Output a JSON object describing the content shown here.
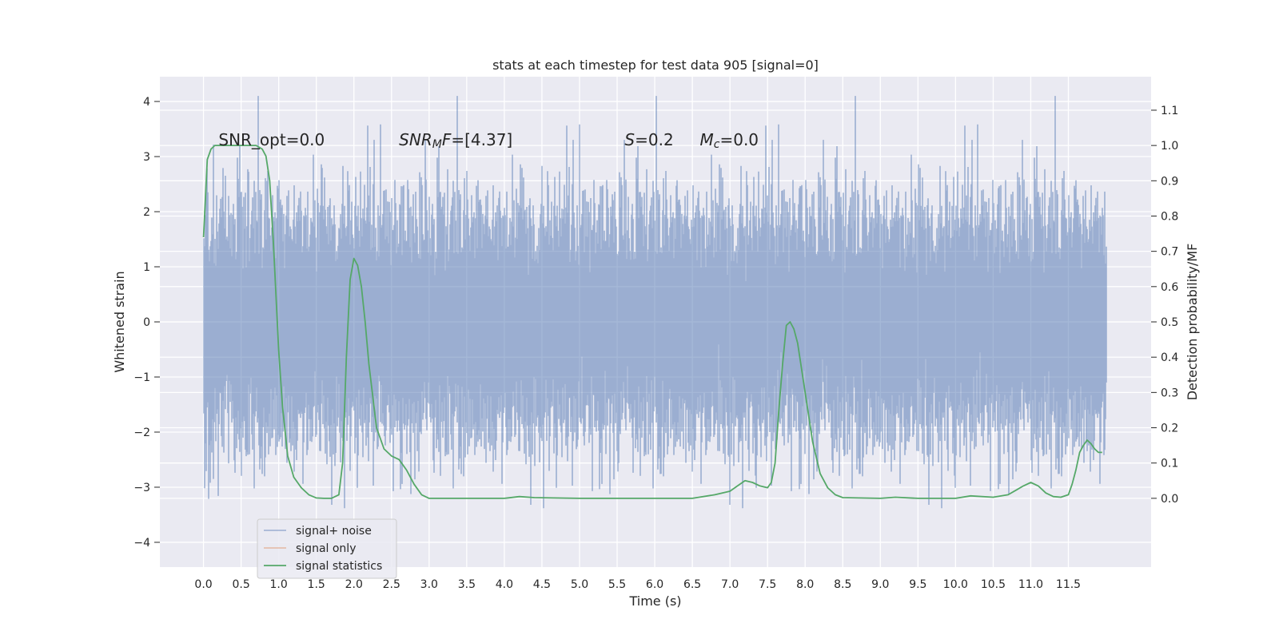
{
  "chart_data": {
    "type": "line",
    "title": "stats at each timestep for test data 905 [signal=0]",
    "xlabel": "Time (s)",
    "ylabel": "Whitened strain",
    "y2label": "Detection probability/MF",
    "xlim": [
      -0.58,
      12.6
    ],
    "ylim": [
      -4.45,
      4.45
    ],
    "y2lim": [
      -0.195,
      1.195
    ],
    "x_ticks": [
      0.0,
      0.5,
      1.0,
      1.5,
      2.0,
      2.5,
      3.0,
      3.5,
      4.0,
      4.5,
      5.0,
      5.5,
      6.0,
      6.5,
      7.0,
      7.5,
      8.0,
      8.5,
      9.0,
      9.5,
      10.0,
      10.5,
      11.0,
      11.5
    ],
    "x_tick_labels": [
      "0.0",
      "0.5",
      "1.0",
      "1.5",
      "2.0",
      "2.5",
      "3.0",
      "3.5",
      "4.0",
      "4.5",
      "5.0",
      "5.5",
      "6.0",
      "6.5",
      "7.0",
      "7.5",
      "8.0",
      "8.5",
      "9.0",
      "9.5",
      "10.0",
      "10.5",
      "11.0",
      "11.5"
    ],
    "y_ticks": [
      -4,
      -3,
      -2,
      -1,
      0,
      1,
      2,
      3,
      4
    ],
    "y_tick_labels": [
      "−4",
      "−3",
      "−2",
      "−1",
      "0",
      "1",
      "2",
      "3",
      "4"
    ],
    "y2_ticks": [
      0.0,
      0.1,
      0.2,
      0.3,
      0.4,
      0.5,
      0.6,
      0.7,
      0.8,
      0.9,
      1.0,
      1.1
    ],
    "y2_tick_labels": [
      "0.0",
      "0.1",
      "0.2",
      "0.3",
      "0.4",
      "0.5",
      "0.6",
      "0.7",
      "0.8",
      "0.9",
      "1.0",
      "1.1"
    ],
    "grid": true,
    "legend_position": "lower-left",
    "annotations": [
      {
        "x": 0.2,
        "y": 3.2,
        "parts": [
          {
            "t": "SNR_opt=0.0",
            "s": "n"
          }
        ]
      },
      {
        "x": 2.6,
        "y": 3.2,
        "parts": [
          {
            "t": "SNR",
            "s": "i"
          },
          {
            "t": "M",
            "s": "sub"
          },
          {
            "t": "F",
            "s": "i"
          },
          {
            "t": "=[4.37]",
            "s": "n"
          }
        ]
      },
      {
        "x": 5.6,
        "y": 3.2,
        "parts": [
          {
            "t": "S",
            "s": "i"
          },
          {
            "t": "=0.2",
            "s": "n"
          }
        ]
      },
      {
        "x": 6.6,
        "y": 3.2,
        "parts": [
          {
            "t": "M",
            "s": "i"
          },
          {
            "t": "c",
            "s": "sub"
          },
          {
            "t": "=0.0",
            "s": "n"
          }
        ]
      }
    ],
    "series": [
      {
        "name": "signal+ noise",
        "color": "#4c72b0",
        "alpha": 0.5,
        "axis": "left",
        "x_range": [
          0.0,
          12.0
        ],
        "sample_rate_hz": 2048,
        "value_range": [
          -4.05,
          4.1
        ],
        "typical_range": [
          -2.5,
          2.6
        ]
      },
      {
        "name": "signal only",
        "color": "#dd8452",
        "alpha": 0.5,
        "axis": "left",
        "x": [],
        "y": []
      },
      {
        "name": "signal statistics",
        "color": "#55a868",
        "axis": "right",
        "x": [
          0.0,
          0.05,
          0.1,
          0.15,
          0.2,
          0.3,
          0.4,
          0.5,
          0.6,
          0.7,
          0.78,
          0.83,
          0.88,
          0.93,
          1.0,
          1.05,
          1.12,
          1.2,
          1.3,
          1.4,
          1.5,
          1.6,
          1.7,
          1.8,
          1.85,
          1.9,
          1.95,
          2.0,
          2.05,
          2.1,
          2.15,
          2.2,
          2.3,
          2.4,
          2.5,
          2.6,
          2.7,
          2.8,
          2.9,
          3.0,
          3.2,
          3.5,
          4.0,
          4.2,
          4.4,
          5.0,
          6.0,
          6.5,
          6.8,
          7.0,
          7.1,
          7.2,
          7.3,
          7.4,
          7.5,
          7.55,
          7.6,
          7.65,
          7.7,
          7.75,
          7.8,
          7.85,
          7.9,
          8.0,
          8.1,
          8.2,
          8.3,
          8.4,
          8.5,
          9.0,
          9.2,
          9.5,
          10.0,
          10.2,
          10.5,
          10.7,
          10.9,
          11.0,
          11.1,
          11.2,
          11.3,
          11.4,
          11.5,
          11.55,
          11.6,
          11.65,
          11.7,
          11.75,
          11.8,
          11.85,
          11.9,
          11.95
        ],
        "y": [
          0.74,
          0.96,
          0.99,
          1.0,
          1.0,
          1.0,
          1.0,
          1.0,
          1.0,
          1.0,
          0.99,
          0.97,
          0.9,
          0.72,
          0.42,
          0.26,
          0.12,
          0.06,
          0.03,
          0.01,
          0.001,
          0.0,
          0.0,
          0.01,
          0.1,
          0.4,
          0.62,
          0.68,
          0.66,
          0.6,
          0.5,
          0.38,
          0.2,
          0.14,
          0.12,
          0.11,
          0.08,
          0.04,
          0.01,
          0.0,
          0.0,
          0.0,
          0.0,
          0.005,
          0.002,
          0.0,
          0.0,
          0.0,
          0.01,
          0.02,
          0.035,
          0.05,
          0.045,
          0.035,
          0.03,
          0.045,
          0.1,
          0.25,
          0.38,
          0.49,
          0.5,
          0.48,
          0.44,
          0.3,
          0.16,
          0.07,
          0.03,
          0.01,
          0.002,
          0.0,
          0.003,
          0.0,
          0.0,
          0.007,
          0.003,
          0.01,
          0.035,
          0.045,
          0.035,
          0.015,
          0.005,
          0.003,
          0.01,
          0.04,
          0.08,
          0.13,
          0.15,
          0.165,
          0.155,
          0.14,
          0.13,
          0.13
        ]
      }
    ]
  }
}
